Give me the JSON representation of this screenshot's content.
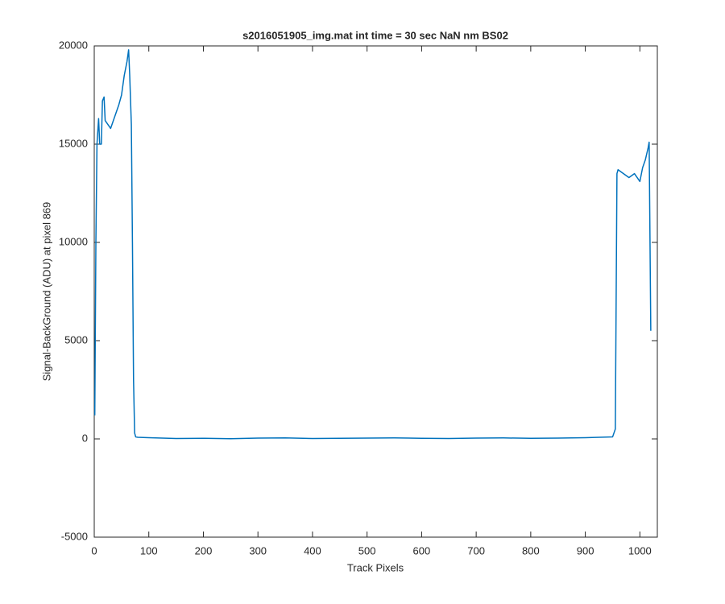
{
  "chart_data": {
    "type": "line",
    "title": "s2016051905_img.mat int time = 30 sec  NaN nm BS02",
    "xlabel": "Track Pixels",
    "ylabel": "Signal-BackGround (ADU) at pixel 869",
    "xlim": [
      0,
      1032
    ],
    "xticks": [
      0,
      100,
      200,
      300,
      400,
      500,
      600,
      700,
      800,
      900,
      1000
    ],
    "ylim": [
      -5000,
      20000
    ],
    "yticks": [
      -5000,
      0,
      5000,
      10000,
      15000,
      20000
    ],
    "series": [
      {
        "color": "#0072bd",
        "x": [
          1,
          3,
          5,
          8,
          10,
          13,
          15,
          18,
          20,
          25,
          30,
          35,
          40,
          45,
          50,
          55,
          60,
          63,
          65,
          68,
          70,
          72,
          74,
          76,
          80,
          100,
          150,
          200,
          250,
          300,
          350,
          400,
          450,
          500,
          550,
          600,
          650,
          700,
          750,
          800,
          850,
          900,
          950,
          955,
          958,
          960,
          970,
          980,
          990,
          1000,
          1005,
          1010,
          1015,
          1017,
          1020
        ],
        "values": [
          1200,
          10000,
          15000,
          16300,
          15000,
          15000,
          17200,
          17400,
          16200,
          16000,
          15800,
          16200,
          16600,
          17000,
          17500,
          18500,
          19200,
          19800,
          18500,
          16000,
          10000,
          3000,
          300,
          100,
          80,
          60,
          20,
          30,
          10,
          40,
          50,
          20,
          30,
          40,
          50,
          30,
          20,
          40,
          50,
          30,
          40,
          60,
          100,
          500,
          13500,
          13700,
          13500,
          13300,
          13500,
          13100,
          13800,
          14200,
          14800,
          15100,
          5500
        ]
      }
    ]
  }
}
